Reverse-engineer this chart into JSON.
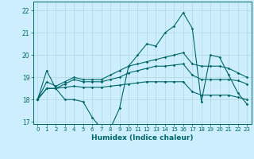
{
  "title": "",
  "xlabel": "Humidex (Indice chaleur)",
  "bg_color": "#cceeff",
  "line_color": "#006666",
  "grid_color": "#b0d8d8",
  "x_values": [
    0,
    1,
    2,
    3,
    4,
    5,
    6,
    7,
    8,
    9,
    10,
    11,
    12,
    13,
    14,
    15,
    16,
    17,
    18,
    19,
    20,
    21,
    22,
    23
  ],
  "line1": [
    18.0,
    19.3,
    18.5,
    18.0,
    18.0,
    17.9,
    17.2,
    16.7,
    16.7,
    17.6,
    19.5,
    20.0,
    20.5,
    20.4,
    21.0,
    21.3,
    21.9,
    21.2,
    17.9,
    20.0,
    19.9,
    19.1,
    18.3,
    17.8
  ],
  "line2": [
    18.0,
    18.8,
    18.6,
    18.8,
    19.0,
    18.9,
    18.9,
    18.9,
    19.1,
    19.3,
    19.5,
    19.6,
    19.7,
    19.8,
    19.9,
    20.0,
    20.1,
    19.6,
    19.5,
    19.5,
    19.5,
    19.4,
    19.2,
    19.0
  ],
  "line3": [
    18.0,
    18.5,
    18.5,
    18.7,
    18.9,
    18.8,
    18.8,
    18.8,
    18.9,
    19.0,
    19.2,
    19.3,
    19.4,
    19.5,
    19.5,
    19.55,
    19.6,
    19.1,
    18.9,
    18.9,
    18.9,
    18.9,
    18.85,
    18.7
  ],
  "line4": [
    18.0,
    18.5,
    18.5,
    18.55,
    18.6,
    18.55,
    18.55,
    18.55,
    18.6,
    18.65,
    18.7,
    18.75,
    18.8,
    18.8,
    18.8,
    18.8,
    18.8,
    18.35,
    18.2,
    18.2,
    18.2,
    18.2,
    18.1,
    18.0
  ],
  "ylim": [
    16.9,
    22.4
  ],
  "yticks": [
    17,
    18,
    19,
    20,
    21,
    22
  ],
  "xticks": [
    0,
    1,
    2,
    3,
    4,
    5,
    6,
    7,
    8,
    9,
    10,
    11,
    12,
    13,
    14,
    15,
    16,
    17,
    18,
    19,
    20,
    21,
    22,
    23
  ]
}
